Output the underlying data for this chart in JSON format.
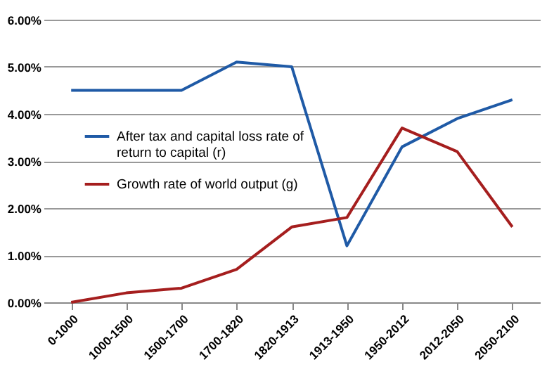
{
  "chart_data": {
    "type": "line",
    "categories": [
      "0-1000",
      "1000-1500",
      "1500-1700",
      "1700-1820",
      "1820-1913",
      "1913-1950",
      "1950-2012",
      "2012-2050",
      "2050-2100"
    ],
    "series": [
      {
        "name": "After tax and capital loss rate of return to capital (r)",
        "color": "#1f5aa6",
        "values": [
          4.5,
          4.5,
          4.5,
          5.1,
          5.0,
          1.2,
          3.3,
          3.9,
          4.3
        ]
      },
      {
        "name": "Growth rate of world output (g)",
        "color": "#a51e1e",
        "values": [
          0.0,
          0.2,
          0.3,
          0.7,
          1.6,
          1.8,
          3.7,
          3.2,
          1.6
        ]
      }
    ],
    "ylim": [
      0,
      6
    ],
    "yticks": [
      {
        "value": 0,
        "label": "0.00%"
      },
      {
        "value": 1,
        "label": "1.00%"
      },
      {
        "value": 2,
        "label": "2.00%"
      },
      {
        "value": 3,
        "label": "3.00%"
      },
      {
        "value": 4,
        "label": "4.00%"
      },
      {
        "value": 5,
        "label": "5.00%"
      },
      {
        "value": 6,
        "label": "6.00%"
      }
    ],
    "grid": "y",
    "legend": "left",
    "marker": "none",
    "line_style": "solid"
  }
}
